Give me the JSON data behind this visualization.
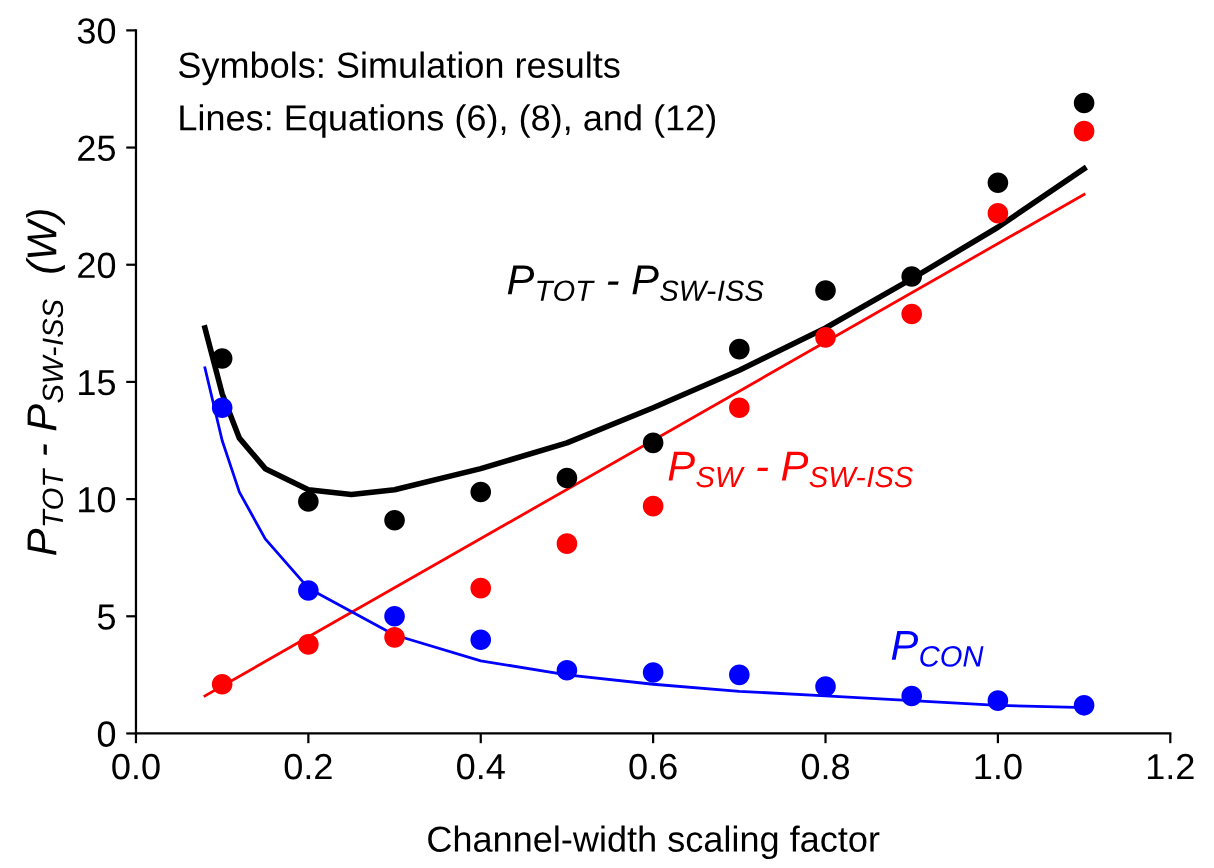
{
  "chart_data": {
    "type": "scatter",
    "xlabel": "Channel-width scaling factor",
    "ylabel": "P$_{TOT}$ - P$_{SW-ISS}$  (W)",
    "xlim": [
      0.0,
      1.2
    ],
    "xticks": [
      {
        "value": 0,
        "label": "0.0"
      },
      0.2,
      0.4,
      0.6,
      0.8,
      {
        "value": 1,
        "label": "1.0"
      },
      1.2
    ],
    "ylim": [
      0,
      30
    ],
    "yticks": [
      0,
      5,
      10,
      15,
      20,
      25,
      30
    ],
    "grid": false,
    "x": [
      0.1,
      0.2,
      0.3,
      0.4,
      0.5,
      0.6,
      0.7,
      0.8,
      0.9,
      1.0,
      1.1
    ],
    "series": [
      {
        "marker": "circle",
        "color": "#000000",
        "values": [
          16.0,
          9.9,
          9.1,
          10.3,
          10.9,
          12.4,
          16.4,
          18.9,
          19.5,
          23.5,
          26.9
        ]
      },
      {
        "marker": "circle",
        "color": "#ff0000",
        "values": [
          2.1,
          3.8,
          4.1,
          6.2,
          8.1,
          9.7,
          13.9,
          16.9,
          17.9,
          22.2,
          25.7
        ]
      },
      {
        "marker": "circle",
        "color": "#0000ff",
        "values": [
          13.9,
          6.1,
          5.0,
          4.0,
          2.7,
          2.6,
          2.5,
          2.0,
          1.6,
          1.4,
          1.2
        ]
      },
      {
        "type": "line",
        "name": "P$_{TOT}$ - P$_{SW-ISS}$",
        "color": "#000000",
        "x": [
          0.08,
          0.1,
          0.12,
          0.15,
          0.2,
          0.25,
          0.3,
          0.4,
          0.5,
          0.6,
          0.7,
          0.8,
          0.9,
          1.0,
          1.1
        ],
        "values": [
          17.3,
          14.5,
          12.6,
          11.3,
          10.4,
          10.2,
          10.4,
          11.3,
          12.4,
          13.9,
          15.5,
          17.3,
          19.4,
          21.6,
          24.1
        ]
      },
      {
        "type": "line",
        "name": "P$_{SW}$ - P$_{SW-ISS}$",
        "color": "#ff0000",
        "x": [
          0.08,
          1.1
        ],
        "values": [
          1.6,
          23.0
        ]
      },
      {
        "type": "line",
        "name": "P$_{CON}$",
        "color": "#0000ff",
        "x": [
          0.08,
          0.1,
          0.12,
          0.15,
          0.2,
          0.3,
          0.4,
          0.5,
          0.6,
          0.7,
          0.8,
          0.9,
          1.0,
          1.1
        ],
        "values": [
          15.6,
          12.5,
          10.3,
          8.3,
          6.2,
          4.2,
          3.1,
          2.5,
          2.1,
          1.8,
          1.6,
          1.4,
          1.2,
          1.1
        ]
      }
    ],
    "annotations": [
      "Symbols: Simulation results",
      "Lines: Equations (6), (8), and (12)"
    ]
  }
}
